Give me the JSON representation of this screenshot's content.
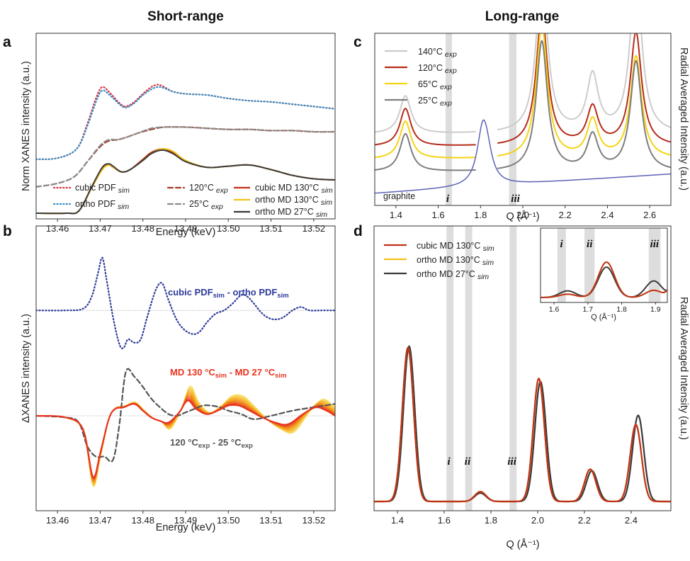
{
  "titles": {
    "left": "Short-range",
    "right": "Long-range"
  },
  "panel_labels": {
    "a": "a",
    "b": "b",
    "c": "c",
    "d": "d"
  },
  "chart_data": [
    {
      "id": "a",
      "type": "line",
      "xlabel": "Energy (keV)",
      "ylabel": "Norm XANES intensity (a.u.)",
      "xlim": [
        13.455,
        13.525
      ],
      "xticks": [
        "13.46",
        "13.47",
        "13.48",
        "13.49",
        "13.50",
        "13.51",
        "13.52"
      ],
      "legend_position": "bottom-right",
      "series": [
        {
          "name": "cubic PDF",
          "sub": "sim",
          "color": "#d9344a",
          "dash": "dotted",
          "x": [
            13.455,
            13.46,
            13.4645,
            13.467,
            13.469,
            13.4705,
            13.4725,
            13.4745,
            13.476,
            13.478,
            13.48,
            13.482,
            13.4835,
            13.485,
            13.487,
            13.49,
            13.495,
            13.5,
            13.505,
            13.51,
            13.515,
            13.52,
            13.525
          ],
          "y": [
            0.47,
            0.48,
            0.56,
            0.78,
            1.0,
            1.1,
            1.04,
            0.96,
            0.93,
            0.97,
            1.04,
            1.1,
            1.12,
            1.1,
            1.06,
            1.04,
            1.03,
            1.0,
            0.98,
            0.97,
            0.95,
            0.93,
            0.91
          ]
        },
        {
          "name": "ortho PDF",
          "sub": "sim",
          "color": "#3a8fc2",
          "dash": "dotted",
          "x": [
            13.455,
            13.46,
            13.4645,
            13.467,
            13.469,
            13.4705,
            13.4725,
            13.4745,
            13.476,
            13.478,
            13.48,
            13.482,
            13.4835,
            13.485,
            13.487,
            13.49,
            13.495,
            13.5,
            13.505,
            13.51,
            13.515,
            13.52,
            13.525
          ],
          "y": [
            0.47,
            0.48,
            0.56,
            0.76,
            0.97,
            1.07,
            1.02,
            0.95,
            0.92,
            0.96,
            1.03,
            1.08,
            1.1,
            1.09,
            1.06,
            1.04,
            1.03,
            1.0,
            0.98,
            0.97,
            0.95,
            0.93,
            0.91
          ]
        },
        {
          "name": "120°C",
          "sub": "exp",
          "color": "#a33a24",
          "dash": "dashed",
          "x": [
            13.455,
            13.46,
            13.464,
            13.467,
            13.47,
            13.472,
            13.474,
            13.476,
            13.479,
            13.482,
            13.485,
            13.49,
            13.495,
            13.5,
            13.505,
            13.51,
            13.515,
            13.52,
            13.525
          ],
          "y": [
            0.23,
            0.26,
            0.32,
            0.45,
            0.58,
            0.63,
            0.64,
            0.66,
            0.7,
            0.73,
            0.75,
            0.75,
            0.74,
            0.73,
            0.73,
            0.72,
            0.72,
            0.71,
            0.71
          ]
        },
        {
          "name": "25°C",
          "sub": "exp",
          "color": "#8c8c8c",
          "dash": "dashed",
          "x": [
            13.455,
            13.46,
            13.464,
            13.467,
            13.47,
            13.472,
            13.474,
            13.476,
            13.479,
            13.482,
            13.485,
            13.49,
            13.495,
            13.5,
            13.505,
            13.51,
            13.515,
            13.52,
            13.525
          ],
          "y": [
            0.23,
            0.26,
            0.32,
            0.45,
            0.59,
            0.64,
            0.64,
            0.66,
            0.7,
            0.74,
            0.75,
            0.75,
            0.74,
            0.73,
            0.73,
            0.72,
            0.72,
            0.71,
            0.71
          ]
        },
        {
          "name": "cubic MD 130°C",
          "sub": "sim",
          "color": "#c0321a",
          "dash": "solid",
          "x": [
            13.455,
            13.462,
            13.465,
            13.468,
            13.4705,
            13.472,
            13.473,
            13.475,
            13.477,
            13.48,
            13.482,
            13.4845,
            13.487,
            13.49,
            13.495,
            13.5,
            13.505,
            13.51,
            13.515,
            13.52,
            13.525
          ],
          "y": [
            0.0,
            0.0,
            0.02,
            0.22,
            0.39,
            0.42,
            0.4,
            0.36,
            0.38,
            0.47,
            0.53,
            0.56,
            0.53,
            0.45,
            0.4,
            0.41,
            0.42,
            0.38,
            0.33,
            0.3,
            0.29
          ]
        },
        {
          "name": "ortho MD 130°C",
          "sub": "sim",
          "color": "#f2c21b",
          "dash": "solid",
          "x": [
            13.455,
            13.462,
            13.465,
            13.468,
            13.4705,
            13.472,
            13.473,
            13.475,
            13.477,
            13.48,
            13.482,
            13.4845,
            13.487,
            13.49,
            13.495,
            13.5,
            13.505,
            13.51,
            13.515,
            13.52,
            13.525
          ],
          "y": [
            0.0,
            0.0,
            0.02,
            0.22,
            0.38,
            0.42,
            0.4,
            0.36,
            0.38,
            0.46,
            0.52,
            0.56,
            0.54,
            0.46,
            0.4,
            0.41,
            0.42,
            0.38,
            0.33,
            0.3,
            0.29
          ]
        },
        {
          "name": "ortho MD  27°C",
          "sub": "sim",
          "color": "#3a3a3a",
          "dash": "solid",
          "x": [
            13.455,
            13.462,
            13.465,
            13.468,
            13.4705,
            13.472,
            13.473,
            13.475,
            13.477,
            13.48,
            13.482,
            13.4845,
            13.487,
            13.49,
            13.495,
            13.5,
            13.505,
            13.51,
            13.515,
            13.52,
            13.525
          ],
          "y": [
            0.0,
            0.0,
            0.02,
            0.23,
            0.4,
            0.43,
            0.41,
            0.36,
            0.38,
            0.46,
            0.52,
            0.55,
            0.52,
            0.45,
            0.4,
            0.41,
            0.42,
            0.38,
            0.33,
            0.3,
            0.29
          ]
        }
      ]
    },
    {
      "id": "b",
      "type": "line",
      "xlabel": "Energy (keV)",
      "ylabel": "ΔXANES intensity (a.u.)",
      "xlim": [
        13.455,
        13.525
      ],
      "xticks": [
        "13.46",
        "13.47",
        "13.48",
        "13.49",
        "13.50",
        "13.51",
        "13.52"
      ],
      "annotations": [
        {
          "text": "cubic PDF",
          "sub": "sim",
          "mid": " - ortho PDF",
          "sub2": "sim",
          "color": "#2d3a9a"
        },
        {
          "text": "MD 130 °C",
          "sub": "sim",
          "mid": " - MD 27 °C",
          "sub2": "sim",
          "color": "#e8331f"
        },
        {
          "text": "120 °C",
          "sub": "exp",
          "mid": " - 25 °C",
          "sub2": "exp",
          "color": "#555555"
        }
      ],
      "baselines": [
        0.62,
        0.0
      ],
      "gradient_colors": [
        "#e8331f",
        "#f4a11a",
        "#f9e36b"
      ],
      "series": [
        {
          "name": "cubic PDF sim - ortho PDF sim",
          "color": "#2d3a9a",
          "dash": "dotted",
          "x": [
            13.455,
            13.462,
            13.466,
            13.468,
            13.4695,
            13.4705,
            13.4715,
            13.473,
            13.4745,
            13.4755,
            13.4765,
            13.478,
            13.4795,
            13.481,
            13.483,
            13.4845,
            13.486,
            13.488,
            13.49,
            13.492,
            13.4935,
            13.495,
            13.497,
            13.499,
            13.501,
            13.503,
            13.5045,
            13.506,
            13.508,
            13.51,
            13.512,
            13.5135,
            13.515,
            13.517,
            13.519,
            13.522,
            13.525
          ],
          "y": [
            0.62,
            0.62,
            0.63,
            0.7,
            0.84,
            0.93,
            0.8,
            0.58,
            0.42,
            0.4,
            0.45,
            0.43,
            0.45,
            0.58,
            0.74,
            0.78,
            0.68,
            0.56,
            0.5,
            0.48,
            0.5,
            0.55,
            0.6,
            0.62,
            0.66,
            0.71,
            0.7,
            0.66,
            0.6,
            0.57,
            0.57,
            0.59,
            0.62,
            0.64,
            0.62,
            0.62,
            0.62
          ]
        },
        {
          "name": "120 °C exp - 25 °C exp",
          "color": "#555555",
          "dash": "dashed",
          "x": [
            13.455,
            13.462,
            13.465,
            13.467,
            13.469,
            13.471,
            13.473,
            13.4745,
            13.476,
            13.478,
            13.48,
            13.482,
            13.484,
            13.486,
            13.488,
            13.49,
            13.492,
            13.494,
            13.496,
            13.498,
            13.5,
            13.503,
            13.506,
            13.51,
            13.515,
            13.52,
            13.525
          ],
          "y": [
            0.0,
            -0.01,
            -0.04,
            -0.18,
            -0.24,
            -0.24,
            -0.26,
            -0.05,
            0.26,
            0.23,
            0.17,
            0.1,
            0.05,
            0.01,
            0.0,
            0.02,
            0.04,
            0.06,
            0.06,
            0.05,
            0.03,
            0.01,
            -0.02,
            0.0,
            0.03,
            0.05,
            0.07
          ]
        },
        {
          "name": "MD 130 °C sim - MD 27 °C sim",
          "color": "#e8331f",
          "dash": "solid",
          "x": [
            13.455,
            13.462,
            13.466,
            13.4683,
            13.47,
            13.472,
            13.4735,
            13.4755,
            13.478,
            13.48,
            13.482,
            13.484,
            13.486,
            13.4885,
            13.4905,
            13.4925,
            13.495,
            13.4975,
            13.5,
            13.5025,
            13.505,
            13.508,
            13.511,
            13.514,
            13.5175,
            13.5205,
            13.523,
            13.525
          ],
          "y": [
            0.0,
            -0.01,
            -0.08,
            -0.36,
            -0.22,
            -0.02,
            0.04,
            0.05,
            0.07,
            0.03,
            -0.01,
            -0.03,
            -0.04,
            0.02,
            0.09,
            0.04,
            0.01,
            0.03,
            0.06,
            0.06,
            0.03,
            -0.01,
            -0.04,
            -0.05,
            0.01,
            0.05,
            0.03,
            0.0
          ]
        }
      ]
    },
    {
      "id": "c",
      "type": "line",
      "xlabel": "Q (Å⁻¹)",
      "ylabel": "Radial Averaged Intensity (a.u.)",
      "xlim": [
        1.3,
        2.7
      ],
      "xticks": [
        "1.4",
        "1.6",
        "1.8",
        "2.0",
        "2.2",
        "2.4",
        "2.6"
      ],
      "shaded_bands": [
        [
          1.635,
          1.665
        ],
        [
          1.935,
          1.97
        ]
      ],
      "band_labels": [
        "i",
        "iii"
      ],
      "band_label_x": [
        1.645,
        1.965
      ],
      "legend_position": "top-left",
      "series": [
        {
          "name": "140°C",
          "sub": "exp",
          "color": "#cccccc",
          "offset": 0.52,
          "gap": [
            1.78,
            1.88
          ]
        },
        {
          "name": "120°C",
          "sub": "exp",
          "color": "#b62c19",
          "offset": 0.42,
          "gap": [
            1.78,
            1.88
          ]
        },
        {
          "name": "65°C",
          "sub": "exp",
          "color": "#f6d313",
          "offset": 0.32,
          "gap": [
            1.78,
            1.88
          ]
        },
        {
          "name": "25°C",
          "sub": "exp",
          "color": "#7d7d7d",
          "offset": 0.22,
          "gap": [
            1.78,
            1.88
          ]
        },
        {
          "name": "graphite",
          "sub": "",
          "color": "#5c62b8",
          "offset": 0.0,
          "gap": null
        }
      ],
      "peaks": {
        "140°C": [
          [
            1.445,
            0.3
          ],
          [
            2.09,
            1.27
          ],
          [
            2.33,
            0.45
          ],
          [
            2.535,
            1.3
          ]
        ],
        "120°C": [
          [
            1.445,
            0.3
          ],
          [
            2.09,
            1.06
          ],
          [
            2.33,
            0.3
          ],
          [
            2.535,
            0.9
          ]
        ],
        "65°C": [
          [
            1.445,
            0.3
          ],
          [
            2.09,
            1.06
          ],
          [
            2.33,
            0.3
          ],
          [
            2.535,
            0.81
          ]
        ],
        "25°C": [
          [
            1.445,
            0.3
          ],
          [
            2.09,
            1.03
          ],
          [
            2.33,
            0.28
          ],
          [
            2.535,
            0.87
          ]
        ]
      },
      "graphite_peaks": [
        [
          1.81,
          1.12
        ],
        [
          1.83,
          0.5
        ]
      ]
    },
    {
      "id": "d",
      "type": "line",
      "xlabel": "Q (Å⁻¹)",
      "ylabel": "Radial Averaged Intensity (a.u.)",
      "xlim": [
        1.3,
        2.57
      ],
      "xticks": [
        "1.4",
        "1.6",
        "1.8",
        "2.0",
        "2.2",
        "2.4"
      ],
      "shaded_bands": [
        [
          1.61,
          1.64
        ],
        [
          1.69,
          1.72
        ],
        [
          1.88,
          1.91
        ]
      ],
      "band_labels": [
        "i",
        "ii",
        "iii"
      ],
      "band_label_x": [
        1.62,
        1.7,
        1.89
      ],
      "legend_position": "top-left",
      "series": [
        {
          "name": "cubic MD 130°C",
          "sub": "sim",
          "color": "#c0321a",
          "peaks": [
            [
              1.445,
              1.0
            ],
            [
              1.755,
              0.064
            ],
            [
              2.005,
              0.8
            ],
            [
              2.225,
              0.21
            ],
            [
              2.42,
              0.5
            ]
          ]
        },
        {
          "name": "ortho MD 130°C",
          "sub": "sim",
          "color": "#f2c21b",
          "peaks": [
            [
              1.445,
              1.0
            ],
            [
              1.755,
              0.064
            ],
            [
              2.005,
              0.8
            ],
            [
              2.225,
              0.21
            ],
            [
              2.42,
              0.5
            ]
          ]
        },
        {
          "name": "ortho MD  27°C",
          "sub": "sim",
          "color": "#3a3a3a",
          "peaks": [
            [
              1.45,
              1.01
            ],
            [
              1.755,
              0.055
            ],
            [
              2.012,
              0.78
            ],
            [
              2.232,
              0.2
            ],
            [
              2.43,
              0.56
            ]
          ]
        }
      ],
      "inset": {
        "xlim": [
          1.56,
          1.935
        ],
        "xticks": [
          "1.6",
          "1.7",
          "1.8",
          "1.9"
        ],
        "xlabel": "Q (Å⁻¹)",
        "shaded_bands": [
          [
            1.61,
            1.635
          ],
          [
            1.69,
            1.72
          ],
          [
            1.88,
            1.915
          ]
        ],
        "band_labels": [
          "i",
          "ii",
          "iii"
        ],
        "band_label_x": [
          1.622,
          1.705,
          1.897
        ]
      }
    }
  ]
}
